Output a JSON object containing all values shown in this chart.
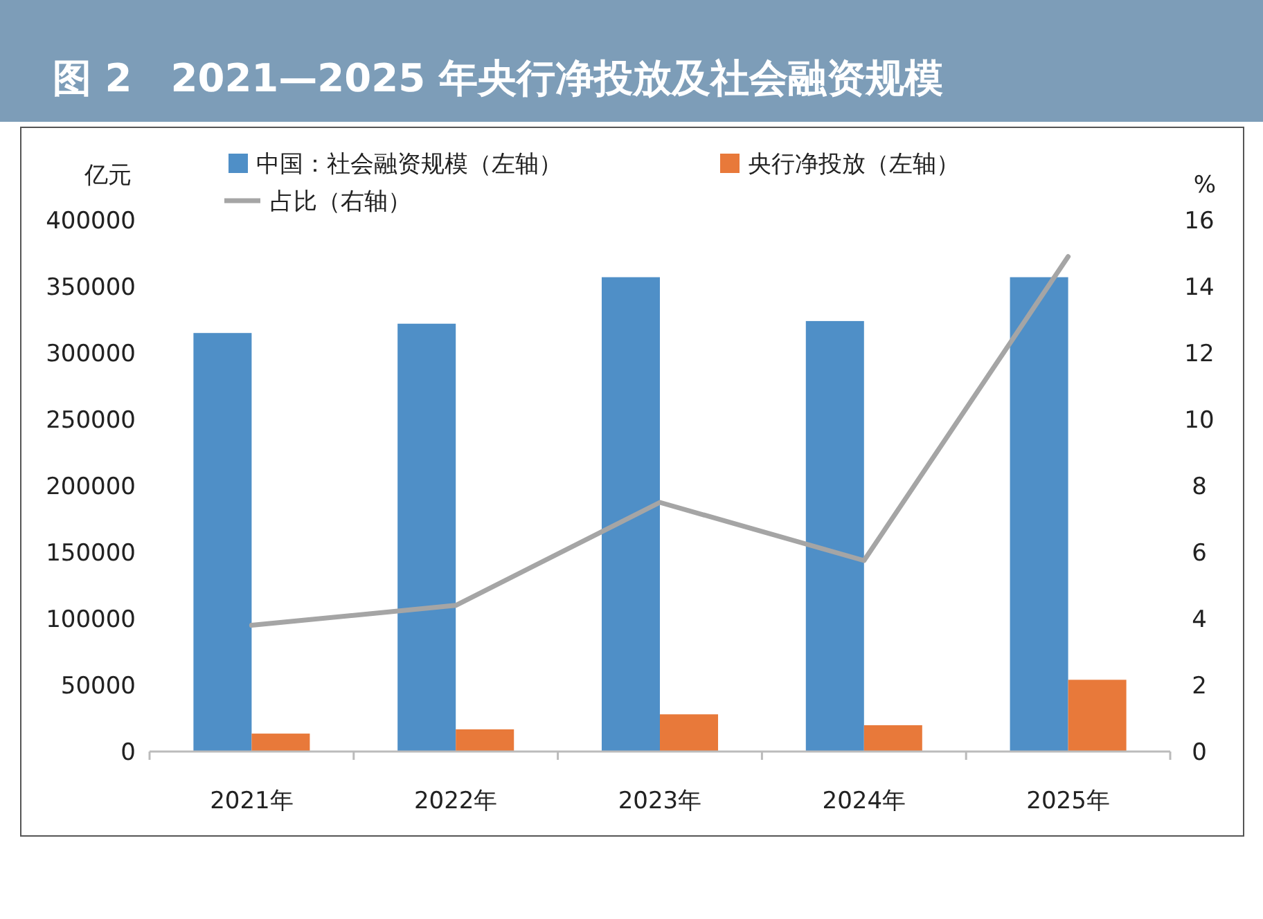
{
  "chart_data": {
    "type": "bar",
    "title": "图 2　2021—2025 年央行净投放及社会融资规模",
    "ylabel": "亿元",
    "y2label": "%",
    "categories": [
      "2021年",
      "2022年",
      "2023年",
      "2024年",
      "2025年"
    ],
    "series": [
      {
        "name": "中国：社会融资规模（左轴）",
        "color": "#4f8fc7",
        "values": [
          315000,
          322000,
          357000,
          324000,
          357000
        ]
      },
      {
        "name": "央行净投放（左轴）",
        "color": "#e8793a",
        "values": [
          13500,
          16700,
          28000,
          19800,
          54000
        ]
      },
      {
        "name": "占比（右轴）",
        "type": "line",
        "axis": "y2",
        "color": "#a5a5a5",
        "values": [
          3.8,
          4.4,
          7.5,
          5.75,
          14.9
        ]
      }
    ],
    "ylim": [
      0,
      400000
    ],
    "yticks": [
      0,
      50000,
      100000,
      150000,
      200000,
      250000,
      300000,
      350000,
      400000
    ],
    "y2lim": [
      0,
      16
    ],
    "y2ticks": [
      0,
      2,
      4,
      6,
      8,
      10,
      12,
      14,
      16
    ],
    "legend": "top",
    "grid": false
  }
}
